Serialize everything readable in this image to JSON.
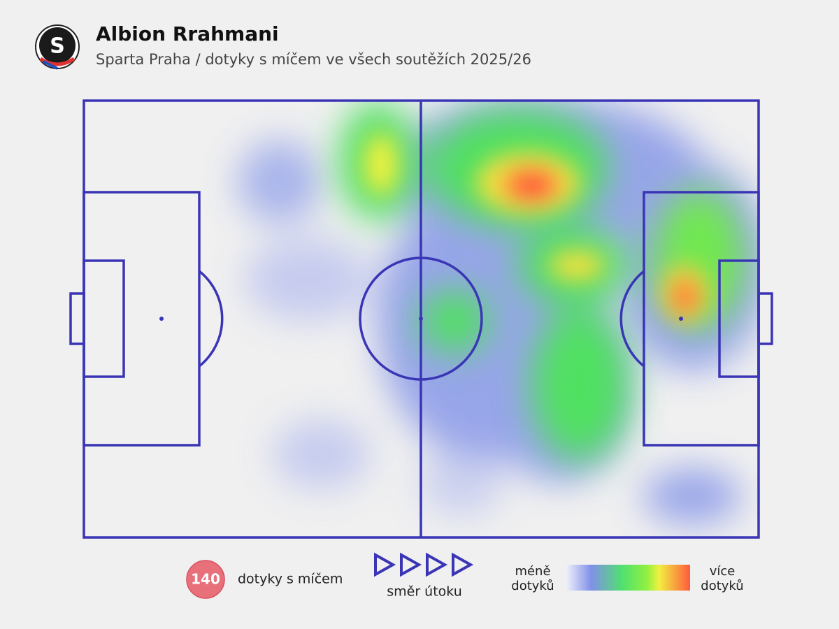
{
  "header": {
    "logo": "S",
    "title": "Albion Rrahmani",
    "subtitle": "Sparta Praha / dotyky s míčem ve všech soutěžích 2025/26"
  },
  "legend": {
    "count": "140",
    "count_label": "dotyky s míčem",
    "direction_label": "směr útoku",
    "less": [
      "méně",
      "dotyků"
    ],
    "more": [
      "více",
      "dotyků"
    ]
  }
}
